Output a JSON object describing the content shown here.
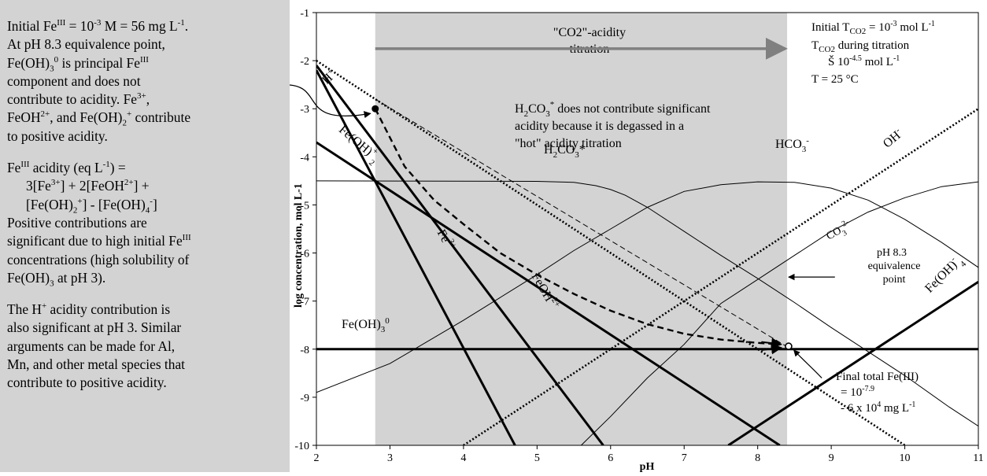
{
  "side_panel": {
    "p1": {
      "l1a": "Initial Fe",
      "l1b": "III",
      "l1c": " = 10",
      "l1d": "-3",
      "l1e": " M = 56 mg L",
      "l1f": "-1",
      "l1g": ".",
      "l2": "At pH 8.3 equivalence point,",
      "l3a": "Fe(OH)",
      "l3b": "3",
      "l3c": "0",
      "l3d": " is principal Fe",
      "l3e": "III",
      "l4": "component and does not",
      "l5a": "contribute to acidity.  Fe",
      "l5b": "3+",
      "l5c": ",",
      "l6a": "FeOH",
      "l6b": "2+",
      "l6c": ", and Fe(OH)",
      "l6d": "2",
      "l6e": "+",
      "l6f": " contribute",
      "l7": "to positive acidity."
    },
    "p2": {
      "l1a": "Fe",
      "l1b": "III",
      "l1c": " acidity (eq L",
      "l1d": "-1",
      "l1e": ") =",
      "l2a": "3[Fe",
      "l2b": "3+",
      "l2c": "] + 2[FeOH",
      "l2d": "2+",
      "l2e": "] +",
      "l3a": "[Fe(OH)",
      "l3b": "2",
      "l3c": "+",
      "l3d": "] - [Fe(OH)",
      "l3e": "4",
      "l3f": "-",
      "l3g": "]",
      "l4": "Positive contributions are",
      "l5a": "significant due to high initial Fe",
      "l5b": "III",
      "l6": "concentrations (high solubility of",
      "l7a": "Fe(OH)",
      "l7b": "3",
      "l7c": " at pH 3)."
    },
    "p3": {
      "l1a": "The H",
      "l1b": "+",
      "l1c": " acidity contribution is",
      "l2": "also significant at pH 3.  Similar",
      "l3": "arguments can be made for Al,",
      "l4": "Mn, and other metal species that",
      "l5": "contribute to positive acidity."
    }
  },
  "chart_data": {
    "type": "line",
    "xlabel": "pH",
    "ylabel": "log concentration, mol L-1",
    "xlim": [
      2,
      11
    ],
    "ylim": [
      -10,
      -1
    ],
    "xticks": [
      "2",
      "3",
      "4",
      "5",
      "6",
      "7",
      "8",
      "9",
      "10",
      "11"
    ],
    "yticks": [
      "-1",
      "-2",
      "-3",
      "-4",
      "-5",
      "-6",
      "-7",
      "-8",
      "-9",
      "-10"
    ],
    "shaded_region_ph": [
      2.8,
      8.4
    ],
    "titration_arrow": {
      "label1": "\"CO2\"-acidity",
      "label2": "titration",
      "from_ph": 2.8,
      "to_ph": 8.4,
      "y": -1.75
    },
    "series": [
      {
        "name": "H+",
        "style": "dotted",
        "points": [
          [
            2,
            -2
          ],
          [
            10,
            -10
          ]
        ]
      },
      {
        "name": "OH-",
        "style": "dotted",
        "points": [
          [
            4,
            -10
          ],
          [
            11,
            -3
          ]
        ]
      },
      {
        "name": "Fe(OH)2+",
        "style": "bold",
        "points": [
          [
            2,
            -3.7
          ],
          [
            8.3,
            -10
          ]
        ]
      },
      {
        "name": "Fe3+",
        "style": "bold",
        "points": [
          [
            2,
            -2.2
          ],
          [
            4.7,
            -10
          ]
        ]
      },
      {
        "name": "FeOH2+",
        "style": "bold",
        "points": [
          [
            2,
            -2.1
          ],
          [
            5.9,
            -10
          ]
        ]
      },
      {
        "name": "Fe(OH)3 0",
        "style": "bold",
        "points": [
          [
            2,
            -8
          ],
          [
            11,
            -8
          ]
        ]
      },
      {
        "name": "Fe(OH)4-",
        "style": "bold",
        "points": [
          [
            7.6,
            -10
          ],
          [
            11,
            -6.6
          ]
        ]
      },
      {
        "name": "Total Fe",
        "style": "dashed-bold",
        "points": [
          [
            2.8,
            -3
          ],
          [
            3.2,
            -4.2
          ],
          [
            3.6,
            -4.9
          ],
          [
            4,
            -5.4
          ],
          [
            4.5,
            -6
          ],
          [
            5,
            -6.45
          ],
          [
            5.5,
            -6.85
          ],
          [
            6,
            -7.2
          ],
          [
            6.5,
            -7.48
          ],
          [
            7,
            -7.68
          ],
          [
            7.5,
            -7.8
          ],
          [
            8,
            -7.87
          ],
          [
            8.3,
            -7.9
          ]
        ]
      },
      {
        "name": "thin-dashed",
        "style": "dashed",
        "points": [
          [
            2.8,
            -2.8
          ],
          [
            8.4,
            -7.95
          ]
        ]
      },
      {
        "name": "H2CO3*",
        "style": "thin",
        "points": [
          [
            2,
            -4.5
          ],
          [
            5,
            -4.51
          ],
          [
            5.5,
            -4.53
          ],
          [
            5.8,
            -4.6
          ],
          [
            6,
            -4.68
          ],
          [
            6.2,
            -4.8
          ],
          [
            6.5,
            -5.05
          ],
          [
            7,
            -5.55
          ],
          [
            7.5,
            -6.05
          ],
          [
            8,
            -6.53
          ],
          [
            8.5,
            -7.03
          ],
          [
            9,
            -7.55
          ],
          [
            9.5,
            -8.05
          ],
          [
            10,
            -8.55
          ],
          [
            10.6,
            -9.2
          ],
          [
            11,
            -9.6
          ]
        ]
      },
      {
        "name": "HCO3-",
        "style": "thin",
        "points": [
          [
            2,
            -8.9
          ],
          [
            3,
            -8.3
          ],
          [
            4,
            -7.4
          ],
          [
            5,
            -6.45
          ],
          [
            5.5,
            -5.95
          ],
          [
            6,
            -5.5
          ],
          [
            6.5,
            -5.05
          ],
          [
            6.8,
            -4.85
          ],
          [
            7,
            -4.72
          ],
          [
            7.5,
            -4.58
          ],
          [
            8,
            -4.52
          ],
          [
            8.5,
            -4.53
          ],
          [
            9,
            -4.65
          ],
          [
            9.5,
            -4.9
          ],
          [
            10,
            -5.3
          ],
          [
            10.5,
            -5.78
          ],
          [
            11,
            -6.3
          ]
        ]
      },
      {
        "name": "CO3 2-",
        "style": "thin",
        "points": [
          [
            5.6,
            -10
          ],
          [
            6,
            -9.4
          ],
          [
            6.5,
            -8.6
          ],
          [
            7,
            -7.9
          ],
          [
            7.5,
            -7.05
          ],
          [
            8,
            -6.55
          ],
          [
            8.5,
            -6.05
          ],
          [
            9,
            -5.55
          ],
          [
            9.5,
            -5.15
          ],
          [
            10,
            -4.85
          ],
          [
            10.5,
            -4.62
          ],
          [
            11,
            -4.52
          ]
        ]
      }
    ],
    "annotations": {
      "h_plus": "H",
      "h_plus_sup": "+",
      "oh": "OH",
      "oh_sup": "-",
      "feoh2_a": "Fe(OH)",
      "feoh2_sub": "2",
      "feoh2_sup": "+",
      "fe3_a": "Fe",
      "fe3_sup": "3+",
      "feoh2p_a": "FeOH",
      "feoh2p_sup": "2+",
      "feoh3_a": "Fe(OH)",
      "feoh3_sub": "3",
      "feoh3_sup": "0",
      "feoh4_a": "Fe(OH)",
      "feoh4_sub": "4",
      "feoh4_sup": "-",
      "h2co3_a": "H",
      "h2co3_sub1": "2",
      "h2co3_b": "CO",
      "h2co3_sub2": "3",
      "h2co3_c": "*",
      "hco3_a": "HCO",
      "hco3_sub": "3",
      "hco3_sup": "-",
      "co3_a": "CO",
      "co3_sub": "3",
      "co3_sup": "2-",
      "note1a": "H",
      "note1_sub1": "2",
      "note1b": "CO",
      "note1_sub2": "3",
      "note1c": "*",
      "note1d": " does not contribute significant",
      "note2": "acidity because it is degassed in a",
      "note3": "\"hot\" acidity titration",
      "init_a": "Initial T",
      "init_sub": "CO2",
      "init_b": " = 10",
      "init_sup": "-3",
      "init_c": " mol L",
      "init_sup2": "-1",
      "tit_a": "T",
      "tit_sub": "CO2",
      "tit_b": " during titration",
      "tit2_a": "Š 10",
      "tit2_sup": "-4.5",
      "tit2_b": " mol L",
      "tit2_sup2": "-1",
      "temp": "T = 25 °C",
      "eq1": "pH 8.3",
      "eq2": "equivalence",
      "eq3": "point",
      "final1": "Final total Fe(III)",
      "final2a": "= 10",
      "final2_sup": "-7.9",
      "final3a": "- 6 x 10",
      "final3_sup": "4",
      "final3b": " mg L",
      "final3_sup2": "-1"
    }
  }
}
